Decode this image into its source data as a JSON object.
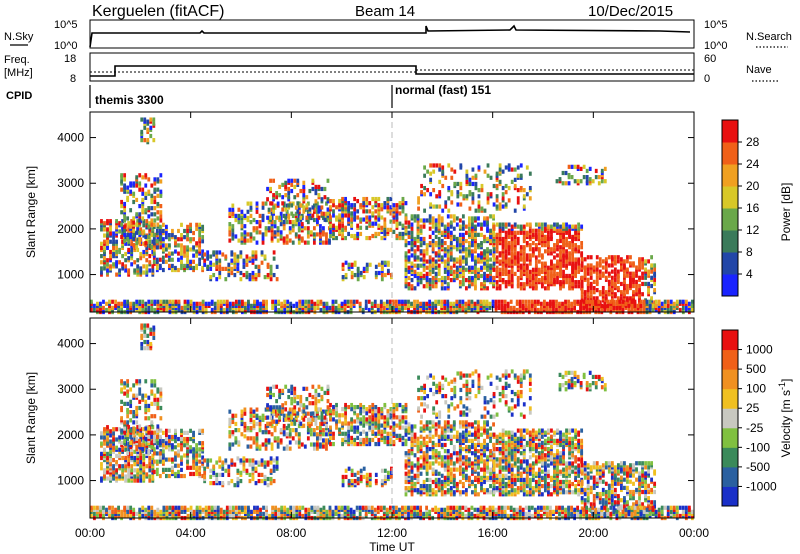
{
  "header": {
    "radar": "Kerguelen (fitACF)",
    "beam": "Beam 14",
    "date": "10/Dec/2015"
  },
  "sky_panel": {
    "left_label": "N.Sky",
    "right_label": "N.Search",
    "left_ticks": [
      "10^5",
      "10^0"
    ],
    "right_ticks": [
      "10^5",
      "10^0"
    ]
  },
  "freq_panel": {
    "left_label_1": "Freq.",
    "left_label_2": "[MHz]",
    "right_label": "Nave",
    "left_ticks": [
      "18",
      "8"
    ],
    "right_ticks": [
      "60",
      "0"
    ]
  },
  "cpid_panel": {
    "label": "CPID",
    "modes": [
      {
        "name": "themis 3300",
        "start_hour": 0
      },
      {
        "name": "normal (fast) 151",
        "start_hour": 12
      }
    ]
  },
  "colors": {
    "power_scale": [
      "#1a24ff",
      "#2246a8",
      "#3a7a5a",
      "#6aa84a",
      "#d8c828",
      "#f0a020",
      "#f06018",
      "#e81010"
    ],
    "velocity_scale": [
      "#1a30c8",
      "#2a60a0",
      "#3a8a5a",
      "#80c040",
      "#c8c8c0",
      "#f0c020",
      "#f09020",
      "#f06018",
      "#e81010"
    ]
  },
  "chart_data": [
    {
      "type": "heatmap",
      "title": "",
      "xlabel": "",
      "ylabel": "Slant Range [km]",
      "xlim": [
        0,
        24
      ],
      "ylim": [
        180,
        4560
      ],
      "x_ticks": [
        "00:00",
        "04:00",
        "08:00",
        "12:00",
        "16:00",
        "20:00",
        "00:00"
      ],
      "y_ticks": [
        1000,
        2000,
        3000,
        4000
      ],
      "colorbar": {
        "label": "Power [dB]",
        "ticks": [
          4,
          8,
          12,
          16,
          20,
          24,
          28
        ],
        "range": [
          0,
          32
        ]
      }
    },
    {
      "type": "heatmap",
      "title": "",
      "xlabel": "Time UT",
      "ylabel": "Slant Range [km]",
      "xlim": [
        0,
        24
      ],
      "ylim": [
        180,
        4560
      ],
      "x_ticks": [
        "00:00",
        "04:00",
        "08:00",
        "12:00",
        "16:00",
        "20:00",
        "00:00"
      ],
      "y_ticks": [
        1000,
        2000,
        3000,
        4000
      ],
      "colorbar": {
        "label": "Velocity [m s-1]",
        "ticks": [
          1000,
          500,
          100,
          25,
          -25,
          -100,
          -500,
          -1000
        ]
      }
    }
  ]
}
